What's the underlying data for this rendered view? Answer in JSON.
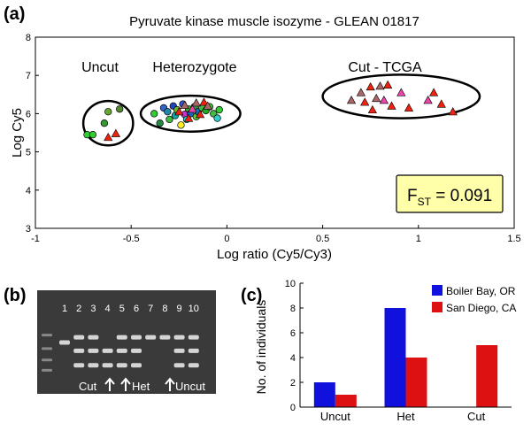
{
  "panels": {
    "a": "(a)",
    "b": "(b)",
    "c": "(c)"
  },
  "chart_data": [
    {
      "type": "scatter",
      "title": "Pyruvate kinase muscle isozyme - GLEAN 01817",
      "xlabel": "Log ratio (Cy5/Cy3)",
      "ylabel": "Log Cy5",
      "xlim": [
        -1,
        1.5
      ],
      "ylim": [
        3,
        8
      ],
      "xticks": [
        "-1",
        "-0.5",
        "0",
        "0.5",
        "1",
        "1.5"
      ],
      "yticks": [
        "3",
        "4",
        "5",
        "6",
        "7",
        "8"
      ],
      "grid": false,
      "annotations": [
        "Uncut",
        "Heterozygote",
        "Cut - TCGA"
      ],
      "fst": {
        "prefix": "F",
        "sub": "ST",
        "suffix": " = 0.091"
      },
      "points": [
        {
          "x": -0.73,
          "y": 5.45,
          "shape": "circle",
          "color": "#33cc33"
        },
        {
          "x": -0.7,
          "y": 5.45,
          "shape": "circle",
          "color": "#33cc33"
        },
        {
          "x": -0.64,
          "y": 5.75,
          "shape": "circle",
          "color": "#339933"
        },
        {
          "x": -0.62,
          "y": 6.05,
          "shape": "circle",
          "color": "#66aa33"
        },
        {
          "x": -0.56,
          "y": 6.12,
          "shape": "circle",
          "color": "#558833"
        },
        {
          "x": -0.62,
          "y": 5.38,
          "shape": "triangle",
          "color": "#ee2211"
        },
        {
          "x": -0.58,
          "y": 5.48,
          "shape": "triangle",
          "color": "#ee2211"
        },
        {
          "x": -0.38,
          "y": 6.0,
          "shape": "circle",
          "color": "#33cc33"
        },
        {
          "x": -0.35,
          "y": 5.75,
          "shape": "circle",
          "color": "#228844"
        },
        {
          "x": -0.33,
          "y": 6.15,
          "shape": "circle",
          "color": "#3366cc"
        },
        {
          "x": -0.31,
          "y": 6.05,
          "shape": "circle",
          "color": "#2288aa"
        },
        {
          "x": -0.3,
          "y": 5.85,
          "shape": "circle",
          "color": "#44bb44"
        },
        {
          "x": -0.28,
          "y": 6.2,
          "shape": "circle",
          "color": "#2244bb"
        },
        {
          "x": -0.27,
          "y": 5.95,
          "shape": "circle",
          "color": "#11aaaa"
        },
        {
          "x": -0.26,
          "y": 6.1,
          "shape": "circle",
          "color": "#66bb22"
        },
        {
          "x": -0.24,
          "y": 5.7,
          "shape": "circle",
          "color": "#ffee22"
        },
        {
          "x": -0.23,
          "y": 6.25,
          "shape": "circle",
          "color": "#3355cc"
        },
        {
          "x": -0.22,
          "y": 5.98,
          "shape": "circle",
          "color": "#cc33cc"
        },
        {
          "x": -0.21,
          "y": 5.85,
          "shape": "circle",
          "color": "#22cccc"
        },
        {
          "x": -0.2,
          "y": 6.12,
          "shape": "circle",
          "color": "#33aa33"
        },
        {
          "x": -0.19,
          "y": 6.0,
          "shape": "circle",
          "color": "#2266bb"
        },
        {
          "x": -0.17,
          "y": 6.18,
          "shape": "circle",
          "color": "#339944"
        },
        {
          "x": -0.16,
          "y": 5.92,
          "shape": "circle",
          "color": "#55cc33"
        },
        {
          "x": -0.15,
          "y": 6.05,
          "shape": "circle",
          "color": "#1177aa"
        },
        {
          "x": -0.13,
          "y": 6.15,
          "shape": "circle",
          "color": "#44bb44"
        },
        {
          "x": -0.11,
          "y": 6.08,
          "shape": "circle",
          "color": "#22aa22"
        },
        {
          "x": -0.09,
          "y": 6.18,
          "shape": "circle",
          "color": "#33cc33"
        },
        {
          "x": -0.07,
          "y": 6.0,
          "shape": "circle",
          "color": "#44bb44"
        },
        {
          "x": -0.05,
          "y": 5.88,
          "shape": "circle",
          "color": "#33cccc"
        },
        {
          "x": -0.04,
          "y": 6.1,
          "shape": "circle",
          "color": "#33cc33"
        },
        {
          "x": -0.25,
          "y": 6.05,
          "shape": "triangle",
          "color": "#ee2211"
        },
        {
          "x": -0.22,
          "y": 6.22,
          "shape": "triangle",
          "color": "#aa6666"
        },
        {
          "x": -0.2,
          "y": 5.88,
          "shape": "triangle",
          "color": "#ee2211"
        },
        {
          "x": -0.18,
          "y": 6.12,
          "shape": "triangle",
          "color": "#ee44aa"
        },
        {
          "x": -0.16,
          "y": 6.28,
          "shape": "triangle",
          "color": "#aa6666"
        },
        {
          "x": -0.14,
          "y": 5.98,
          "shape": "triangle",
          "color": "#ee2211"
        },
        {
          "x": -0.12,
          "y": 6.3,
          "shape": "triangle",
          "color": "#ee2211"
        },
        {
          "x": -0.1,
          "y": 6.2,
          "shape": "triangle",
          "color": "#aa6666"
        },
        {
          "x": 0.65,
          "y": 6.35,
          "shape": "triangle",
          "color": "#aa6666"
        },
        {
          "x": 0.7,
          "y": 6.55,
          "shape": "triangle",
          "color": "#aa6666"
        },
        {
          "x": 0.72,
          "y": 6.3,
          "shape": "triangle",
          "color": "#ee2211"
        },
        {
          "x": 0.75,
          "y": 6.7,
          "shape": "triangle",
          "color": "#ee2211"
        },
        {
          "x": 0.76,
          "y": 6.1,
          "shape": "triangle",
          "color": "#ee2211"
        },
        {
          "x": 0.78,
          "y": 6.4,
          "shape": "triangle",
          "color": "#aa6666"
        },
        {
          "x": 0.8,
          "y": 6.72,
          "shape": "triangle",
          "color": "#aa6666"
        },
        {
          "x": 0.82,
          "y": 6.35,
          "shape": "triangle",
          "color": "#ee44aa"
        },
        {
          "x": 0.84,
          "y": 6.75,
          "shape": "triangle",
          "color": "#ee2211"
        },
        {
          "x": 0.86,
          "y": 6.2,
          "shape": "triangle",
          "color": "#ee2211"
        },
        {
          "x": 0.91,
          "y": 6.55,
          "shape": "triangle",
          "color": "#ee44aa"
        },
        {
          "x": 0.95,
          "y": 6.15,
          "shape": "triangle",
          "color": "#ee2211"
        },
        {
          "x": 1.05,
          "y": 6.35,
          "shape": "triangle",
          "color": "#ee44aa"
        },
        {
          "x": 1.08,
          "y": 6.55,
          "shape": "triangle",
          "color": "#ee2211"
        },
        {
          "x": 1.12,
          "y": 6.25,
          "shape": "triangle",
          "color": "#ee2211"
        },
        {
          "x": 1.18,
          "y": 6.05,
          "shape": "triangle",
          "color": "#ee2211"
        }
      ],
      "ellipses": [
        {
          "cx": -0.62,
          "cy": 5.75,
          "rx": 0.13,
          "ry": 0.58
        },
        {
          "cx": -0.19,
          "cy": 6.0,
          "rx": 0.26,
          "ry": 0.47
        },
        {
          "cx": 0.91,
          "cy": 6.45,
          "rx": 0.41,
          "ry": 0.57
        }
      ]
    },
    {
      "type": "bar",
      "ylabel": "No. of individuals",
      "xlabel": "",
      "categories": [
        "Uncut",
        "Het",
        "Cut"
      ],
      "ylim": [
        0,
        10
      ],
      "yticks": [
        "0",
        "2",
        "4",
        "6",
        "8",
        "10"
      ],
      "legend_position": "top-right",
      "series": [
        {
          "name": "Boiler  Bay, OR",
          "values": [
            2,
            8,
            0
          ],
          "color": "#1111dd"
        },
        {
          "name": "San Diego, CA",
          "values": [
            1,
            4,
            5
          ],
          "color": "#dd1111"
        }
      ]
    }
  ],
  "gel": {
    "lane_numbers": [
      "1",
      "2",
      "3",
      "4",
      "5",
      "6",
      "7",
      "8",
      "9",
      "10"
    ],
    "labels": [
      "Cut",
      "Het",
      "Uncut"
    ],
    "lanes": [
      {
        "lane": 1,
        "bands": [
          0.5
        ]
      },
      {
        "lane": 2,
        "bands": [
          0.45,
          0.58,
          0.72
        ]
      },
      {
        "lane": 3,
        "bands": [
          0.45,
          0.58,
          0.72
        ]
      },
      {
        "lane": 4,
        "bands": [
          0.58,
          0.72
        ]
      },
      {
        "lane": 5,
        "bands": [
          0.45,
          0.58,
          0.72
        ]
      },
      {
        "lane": 6,
        "bands": [
          0.45,
          0.58,
          0.72
        ]
      },
      {
        "lane": 7,
        "bands": [
          0.45
        ]
      },
      {
        "lane": 8,
        "bands": [
          0.45
        ]
      },
      {
        "lane": 9,
        "bands": [
          0.45,
          0.58,
          0.72
        ]
      },
      {
        "lane": 10,
        "bands": [
          0.45,
          0.58,
          0.72
        ]
      }
    ]
  }
}
